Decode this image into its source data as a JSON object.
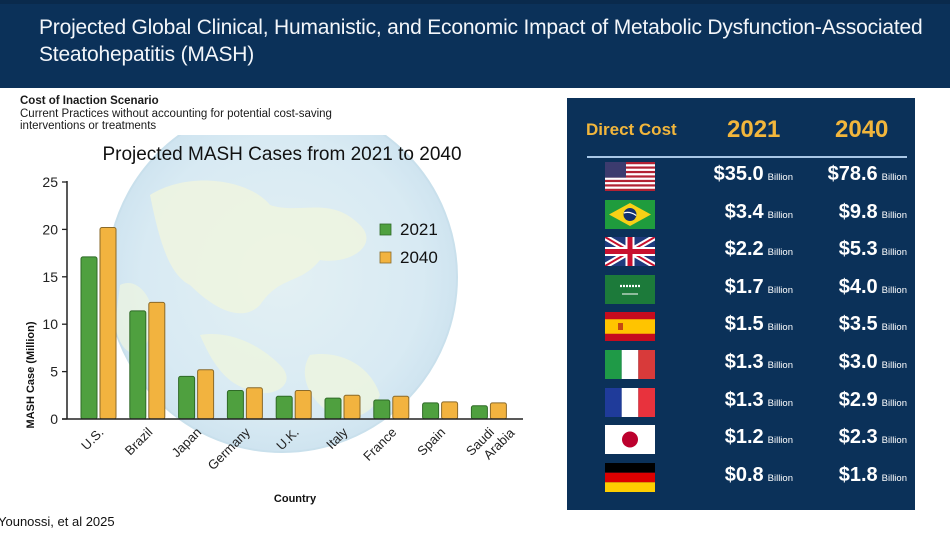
{
  "header": {
    "title": "Projected Global Clinical, Humanistic, and Economic Impact of Metabolic Dysfunction-Associated Steatohepatitis (MASH)"
  },
  "scenario": {
    "title": "Cost of Inaction Scenario",
    "description": "Current Practices without accounting for potential cost-saving interventions or treatments"
  },
  "citation": "Younossi, et al 2025",
  "colors": {
    "header_bg": "#0b3159",
    "bar_2021": "#4fa03f",
    "bar_2040": "#f2b33f",
    "accent_gold": "#f2b63c"
  },
  "chart_data": {
    "type": "bar",
    "title": "Projected MASH Cases from 2021 to 2040",
    "xlabel": "Country",
    "ylabel": "MASH Case (Million)",
    "ylim": [
      0,
      25
    ],
    "yticks": [
      0,
      5,
      10,
      15,
      20,
      25
    ],
    "grid": false,
    "legend_position": "top-right",
    "categories": [
      "U.S.",
      "Brazil",
      "Japan",
      "Germany",
      "U.K.",
      "Italy",
      "France",
      "Spain",
      "Saudi Arabia"
    ],
    "category_lines": [
      [
        "U.S."
      ],
      [
        "Brazil"
      ],
      [
        "Japan"
      ],
      [
        "Germany"
      ],
      [
        "U.K."
      ],
      [
        "Italy"
      ],
      [
        "France"
      ],
      [
        "Spain"
      ],
      [
        "Saudi",
        "Arabia"
      ]
    ],
    "series": [
      {
        "name": "2021",
        "color": "#4fa03f",
        "values": [
          17.1,
          11.4,
          4.5,
          3.0,
          2.4,
          2.2,
          2.0,
          1.7,
          1.4
        ]
      },
      {
        "name": "2040",
        "color": "#f2b33f",
        "values": [
          20.2,
          12.3,
          5.2,
          3.3,
          3.0,
          2.5,
          2.4,
          1.8,
          1.7
        ]
      }
    ]
  },
  "direct_cost": {
    "label": "Direct Cost",
    "year1": "2021",
    "year2": "2040",
    "unit": "Billion",
    "rows": [
      {
        "country": "United States",
        "flag": "us-flag-icon",
        "v2021": "$35.0",
        "v2040": "$78.6"
      },
      {
        "country": "Brazil",
        "flag": "brazil-flag-icon",
        "v2021": "$3.4",
        "v2040": "$9.8"
      },
      {
        "country": "United Kingdom",
        "flag": "uk-flag-icon",
        "v2021": "$2.2",
        "v2040": "$5.3"
      },
      {
        "country": "Saudi Arabia",
        "flag": "saudi-arabia-flag-icon",
        "v2021": "$1.7",
        "v2040": "$4.0"
      },
      {
        "country": "Spain",
        "flag": "spain-flag-icon",
        "v2021": "$1.5",
        "v2040": "$3.5"
      },
      {
        "country": "Italy",
        "flag": "italy-flag-icon",
        "v2021": "$1.3",
        "v2040": "$3.0"
      },
      {
        "country": "France",
        "flag": "france-flag-icon",
        "v2021": "$1.3",
        "v2040": "$2.9"
      },
      {
        "country": "Japan",
        "flag": "japan-flag-icon",
        "v2021": "$1.2",
        "v2040": "$2.3"
      },
      {
        "country": "Germany",
        "flag": "germany-flag-icon",
        "v2021": "$0.8",
        "v2040": "$1.8"
      }
    ]
  }
}
